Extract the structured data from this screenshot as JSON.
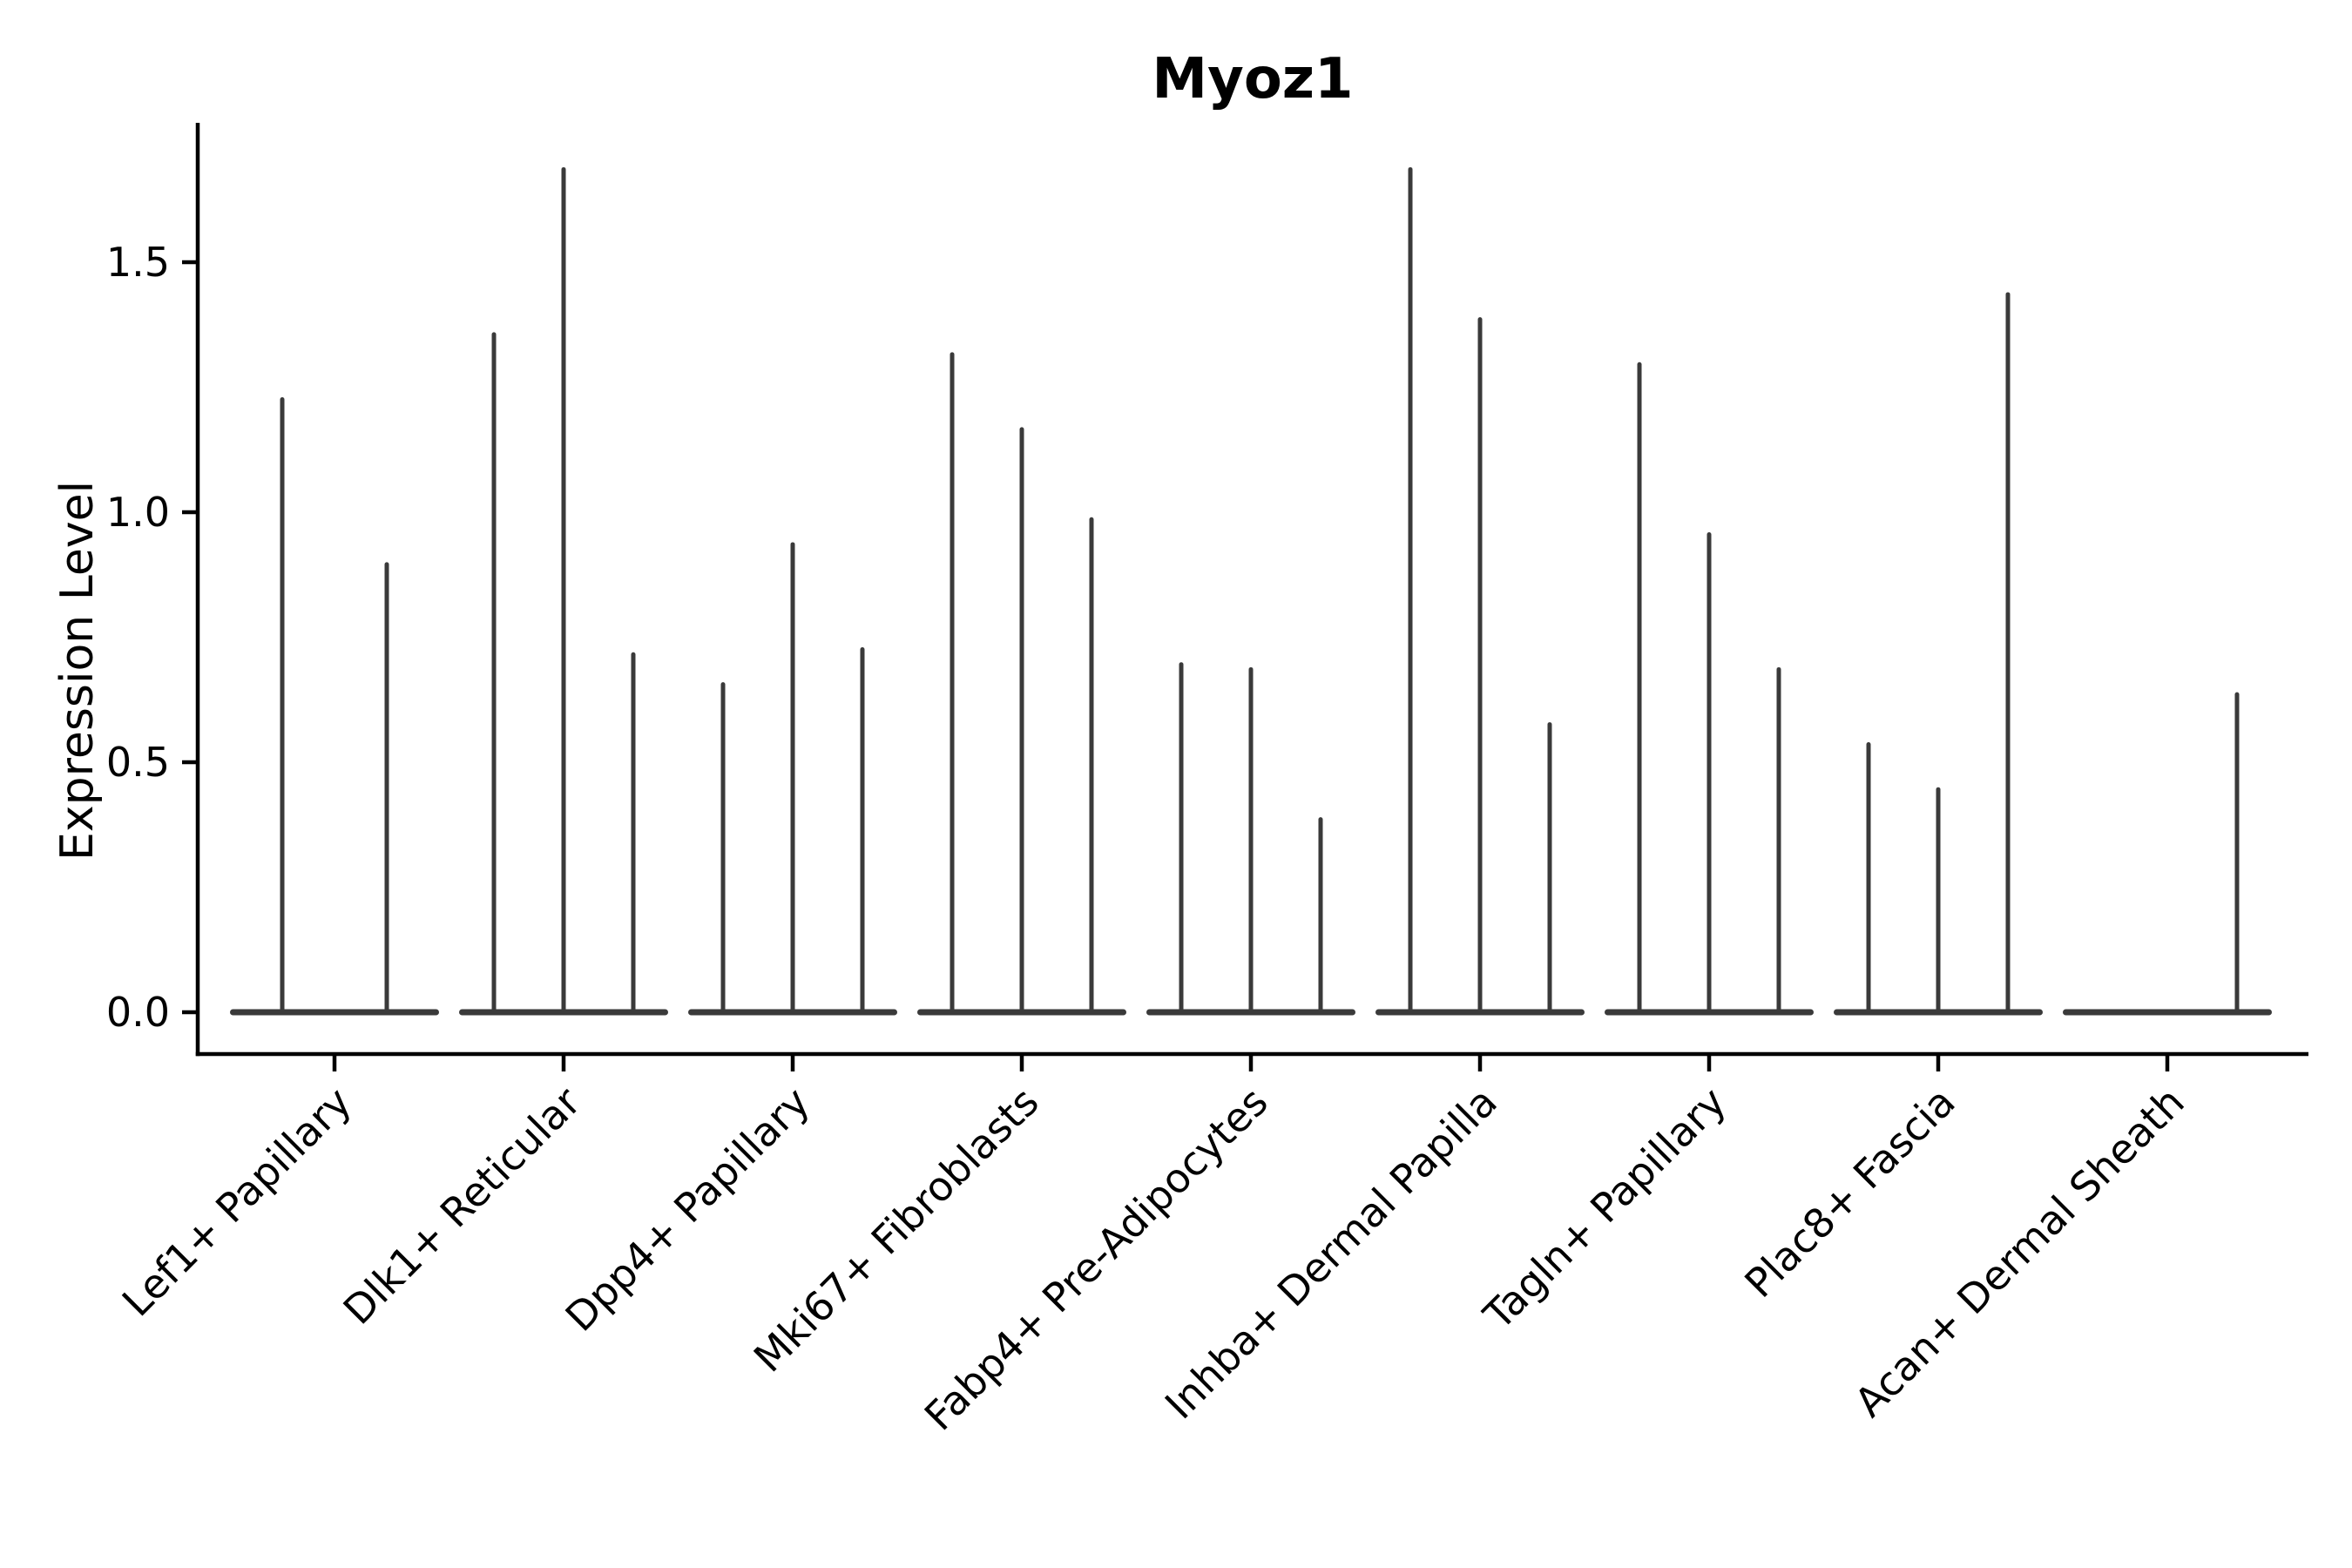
{
  "figure": {
    "title": "Myoz1",
    "ylabel": "Expression Level"
  },
  "chart_data": {
    "type": "violin",
    "title": "Myoz1",
    "xlabel": "",
    "ylabel": "Expression Level",
    "ytick_labels": [
      "0.0",
      "0.5",
      "1.0",
      "1.5"
    ],
    "ytick_values": [
      0.0,
      0.5,
      1.0,
      1.5
    ],
    "ylim": [
      -0.08,
      1.78
    ],
    "grid": "off",
    "legend": "none",
    "categories": [
      "Lef1+ Papillary",
      "Dlk1+ Reticular",
      "Dpp4+ Papillary",
      "Mki67+ Fibroblasts",
      "Fabp4+ Pre-Adipocytes",
      "Inhba+ Dermal Papilla",
      "Tagln+ Papillary",
      "Plac8+ Fascia",
      "Acan+ Dermal Sheath"
    ],
    "groups": [
      {
        "label": "Lef1+ Papillary",
        "spikes": [
          {
            "pos": 0.25,
            "max": 1.23
          },
          {
            "pos": 0.75,
            "max": 0.9
          }
        ]
      },
      {
        "label": "Dlk1+ Reticular",
        "spikes": [
          {
            "pos": 0.1667,
            "max": 1.36
          },
          {
            "pos": 0.5,
            "max": 1.69
          },
          {
            "pos": 0.8333,
            "max": 0.72
          }
        ]
      },
      {
        "label": "Dpp4+ Papillary",
        "spikes": [
          {
            "pos": 0.1667,
            "max": 0.66
          },
          {
            "pos": 0.5,
            "max": 0.94
          },
          {
            "pos": 0.8333,
            "max": 0.73
          }
        ]
      },
      {
        "label": "Mki67+ Fibroblasts",
        "spikes": [
          {
            "pos": 0.1667,
            "max": 1.32
          },
          {
            "pos": 0.5,
            "max": 1.17
          },
          {
            "pos": 0.8333,
            "max": 0.99
          }
        ]
      },
      {
        "label": "Fabp4+ Pre-Adipocytes",
        "spikes": [
          {
            "pos": 0.1667,
            "max": 0.7
          },
          {
            "pos": 0.5,
            "max": 0.69
          },
          {
            "pos": 0.8333,
            "max": 0.39
          }
        ]
      },
      {
        "label": "Inhba+ Dermal Papilla",
        "spikes": [
          {
            "pos": 0.1667,
            "max": 1.69
          },
          {
            "pos": 0.5,
            "max": 1.39
          },
          {
            "pos": 0.8333,
            "max": 0.58
          }
        ]
      },
      {
        "label": "Tagln+ Papillary",
        "spikes": [
          {
            "pos": 0.1667,
            "max": 1.3
          },
          {
            "pos": 0.5,
            "max": 0.96
          },
          {
            "pos": 0.8333,
            "max": 0.69
          }
        ]
      },
      {
        "label": "Plac8+ Fascia",
        "spikes": [
          {
            "pos": 0.1667,
            "max": 0.54
          },
          {
            "pos": 0.5,
            "max": 0.45
          },
          {
            "pos": 0.8333,
            "max": 1.44
          }
        ]
      },
      {
        "label": "Acan+ Dermal Sheath",
        "spikes": [
          {
            "pos": 0.8333,
            "max": 0.64
          }
        ]
      }
    ],
    "colors": {
      "violin": "#3a3a3a",
      "axis": "#000000",
      "background": "#ffffff"
    }
  }
}
